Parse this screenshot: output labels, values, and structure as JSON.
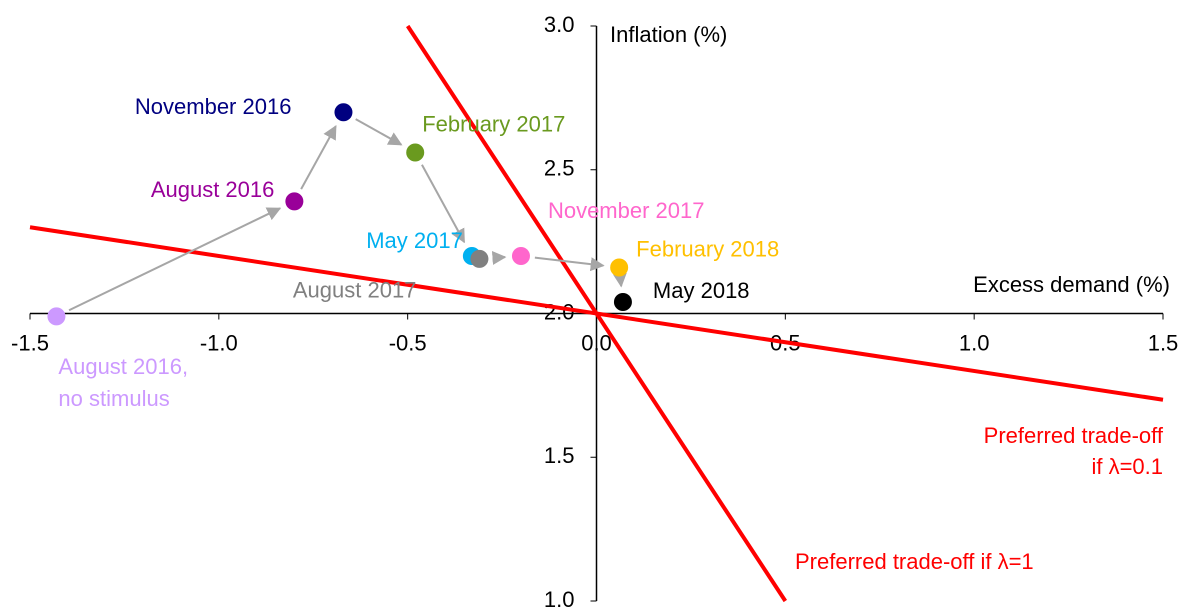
{
  "chart_data": {
    "type": "scatter",
    "x_label": "Excess demand (%)",
    "y_label": "Inflation (%)",
    "xlim": [
      -1.5,
      1.5
    ],
    "ylim": [
      1.0,
      3.0
    ],
    "xticks": [
      {
        "value": -1.5,
        "label": "-1.5"
      },
      {
        "value": -1.0,
        "label": "-1.0"
      },
      {
        "value": -0.5,
        "label": "-0.5"
      },
      {
        "value": 0,
        "label": "0.0"
      },
      0.5,
      {
        "value": 1.0,
        "label": "1.0"
      },
      1.5
    ],
    "yticks": [
      {
        "value": 1.0,
        "label": "1.0"
      },
      1.5,
      {
        "value": 2.0,
        "label": "2.0"
      },
      2.5,
      {
        "value": 3.0,
        "label": "3.0"
      }
    ],
    "series": [
      {
        "name": [
          "August 2016,",
          "no stimulus"
        ],
        "color": "#cc99ff",
        "x": [
          -1.43
        ],
        "values": [
          1.99
        ]
      },
      {
        "name": [
          "August 2016"
        ],
        "color": "#990099",
        "x": [
          -0.8
        ],
        "values": [
          2.39
        ]
      },
      {
        "name": [
          "November 2016"
        ],
        "color": "#000080",
        "x": [
          -0.67
        ],
        "values": [
          2.7
        ]
      },
      {
        "name": [
          "February 2017"
        ],
        "color": "#6a9a1f",
        "x": [
          -0.48
        ],
        "values": [
          2.56
        ]
      },
      {
        "name": [
          "May 2017"
        ],
        "color": "#00b0f0",
        "x": [
          -0.33
        ],
        "values": [
          2.2
        ]
      },
      {
        "name": [
          "August 2017"
        ],
        "color": "#808080",
        "x": [
          -0.31
        ],
        "values": [
          2.19
        ]
      },
      {
        "name": [
          "November 2017"
        ],
        "color": "#ff66cc",
        "x": [
          -0.2
        ],
        "values": [
          2.2
        ]
      },
      {
        "name": [
          "February 2018"
        ],
        "color": "#ffc000",
        "x": [
          0.06
        ],
        "values": [
          2.16
        ]
      },
      {
        "name": [
          "May 2018"
        ],
        "color": "#000000",
        "x": [
          0.07
        ],
        "values": [
          2.04
        ]
      }
    ],
    "lines": [
      {
        "name": [
          "Preferred trade-off if λ=1"
        ],
        "color": "#ff0000",
        "x": [
          -0.5,
          0.5
        ],
        "values": [
          3.0,
          1.0
        ]
      },
      {
        "name": [
          "Preferred trade-off",
          "if λ=0.1"
        ],
        "color": "#ff0000",
        "x": [
          -1.5,
          1.5
        ],
        "values": [
          2.3,
          1.7
        ]
      }
    ]
  }
}
